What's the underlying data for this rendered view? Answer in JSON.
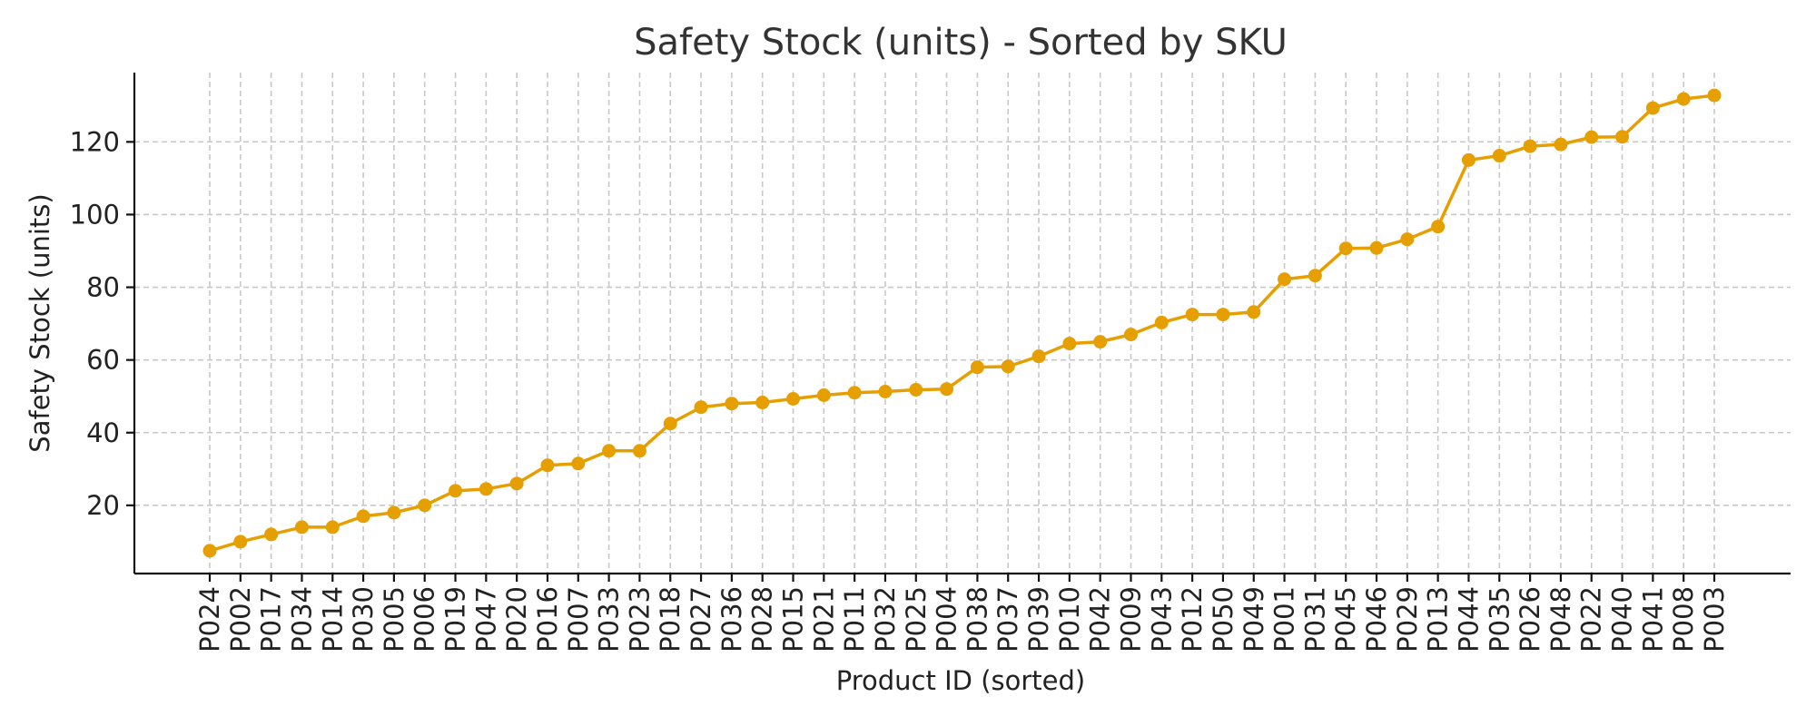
{
  "chart_data": {
    "type": "line",
    "title": "Safety Stock (units) - Sorted by SKU",
    "xlabel": "Product ID (sorted)",
    "ylabel": "Safety Stock (units)",
    "categories": [
      "P024",
      "P002",
      "P017",
      "P034",
      "P014",
      "P030",
      "P005",
      "P006",
      "P019",
      "P047",
      "P020",
      "P016",
      "P007",
      "P033",
      "P023",
      "P018",
      "P027",
      "P036",
      "P028",
      "P015",
      "P021",
      "P011",
      "P032",
      "P025",
      "P004",
      "P038",
      "P037",
      "P039",
      "P010",
      "P042",
      "P009",
      "P043",
      "P012",
      "P050",
      "P049",
      "P001",
      "P031",
      "P045",
      "P046",
      "P029",
      "P013",
      "P044",
      "P035",
      "P026",
      "P048",
      "P022",
      "P040",
      "P041",
      "P008",
      "P003"
    ],
    "series": [
      {
        "values": [
          7.5,
          10,
          12,
          14,
          14,
          17,
          18,
          20,
          24,
          24.5,
          26,
          31,
          31.5,
          35,
          35,
          42.5,
          47,
          48,
          48.3,
          49.3,
          50.3,
          51,
          51.3,
          51.8,
          52,
          58,
          58.2,
          61,
          64.5,
          65,
          67,
          70.3,
          72.5,
          72.5,
          73.2,
          82.2,
          83.2,
          90.7,
          90.8,
          93.2,
          96.7,
          115,
          116.2,
          118.8,
          119.3,
          121.3,
          121.4,
          129.3,
          131.8,
          132.8
        ],
        "color": "#e69f00"
      }
    ],
    "y_ticks": [
      20,
      40,
      60,
      80,
      100,
      120
    ],
    "ylim": [
      1.24,
      139.06
    ],
    "grid": true,
    "legend": "none"
  }
}
